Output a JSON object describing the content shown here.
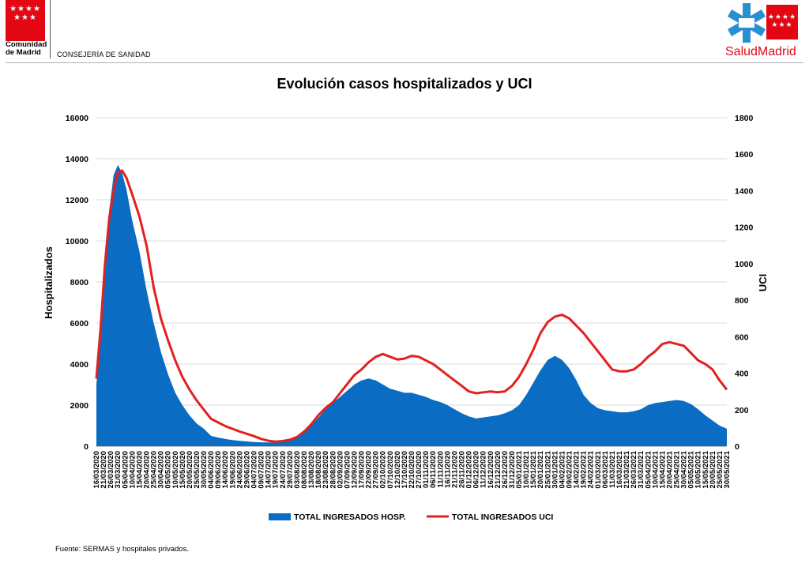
{
  "header": {
    "org_line1": "Comunidad",
    "org_line2": "de Madrid",
    "department": "CONSEJERÍA DE SANIDAD",
    "brand_part1": "Salud",
    "brand_part2": "Madrid"
  },
  "colors": {
    "brand_red": "#e30613",
    "brand_blue": "#2a8fd1",
    "area_blue": "#0a6cc2",
    "line_red": "#e41f1f"
  },
  "chart_data": {
    "type": "area",
    "title": "Evolución casos hospitalizados y UCI",
    "ylabel": "Hospitalizados",
    "y2label": "UCI",
    "ylim": [
      0,
      16000
    ],
    "y2lim": [
      0,
      1800
    ],
    "yticks": [
      0,
      2000,
      4000,
      6000,
      8000,
      10000,
      12000,
      14000,
      16000
    ],
    "y2ticks": [
      0,
      200,
      400,
      600,
      800,
      1000,
      1200,
      1400,
      1600,
      1800
    ],
    "grid": true,
    "legend_position": "bottom",
    "x_start": "2020-03-16",
    "x_end": "2021-05-30",
    "x_tick_step_days": 5,
    "series": [
      {
        "name": "TOTAL INGRESADOS HOSP.",
        "kind": "area",
        "axis": "left",
        "points": [
          [
            "2020-03-16",
            3000
          ],
          [
            "2020-03-19",
            5500
          ],
          [
            "2020-03-22",
            8600
          ],
          [
            "2020-03-25",
            11500
          ],
          [
            "2020-03-28",
            13200
          ],
          [
            "2020-03-31",
            13700
          ],
          [
            "2020-04-03",
            13300
          ],
          [
            "2020-04-06",
            12500
          ],
          [
            "2020-04-10",
            11000
          ],
          [
            "2020-04-15",
            9500
          ],
          [
            "2020-04-20",
            7600
          ],
          [
            "2020-04-25",
            6000
          ],
          [
            "2020-04-30",
            4600
          ],
          [
            "2020-05-05",
            3500
          ],
          [
            "2020-05-10",
            2600
          ],
          [
            "2020-05-15",
            2000
          ],
          [
            "2020-05-20",
            1500
          ],
          [
            "2020-05-25",
            1100
          ],
          [
            "2020-05-30",
            850
          ],
          [
            "2020-06-04",
            500
          ],
          [
            "2020-06-09",
            420
          ],
          [
            "2020-06-14",
            350
          ],
          [
            "2020-06-19",
            300
          ],
          [
            "2020-06-24",
            260
          ],
          [
            "2020-06-29",
            230
          ],
          [
            "2020-07-04",
            200
          ],
          [
            "2020-07-09",
            190
          ],
          [
            "2020-07-14",
            180
          ],
          [
            "2020-07-19",
            190
          ],
          [
            "2020-07-24",
            230
          ],
          [
            "2020-07-29",
            300
          ],
          [
            "2020-08-03",
            450
          ],
          [
            "2020-08-08",
            700
          ],
          [
            "2020-08-13",
            1000
          ],
          [
            "2020-08-18",
            1400
          ],
          [
            "2020-08-23",
            1800
          ],
          [
            "2020-08-28",
            2100
          ],
          [
            "2020-09-02",
            2400
          ],
          [
            "2020-09-07",
            2700
          ],
          [
            "2020-09-12",
            3000
          ],
          [
            "2020-09-17",
            3200
          ],
          [
            "2020-09-22",
            3300
          ],
          [
            "2020-09-27",
            3200
          ],
          [
            "2020-10-02",
            3000
          ],
          [
            "2020-10-07",
            2800
          ],
          [
            "2020-10-12",
            2700
          ],
          [
            "2020-10-17",
            2600
          ],
          [
            "2020-10-22",
            2600
          ],
          [
            "2020-10-27",
            2500
          ],
          [
            "2020-11-01",
            2400
          ],
          [
            "2020-11-06",
            2250
          ],
          [
            "2020-11-11",
            2150
          ],
          [
            "2020-11-16",
            2000
          ],
          [
            "2020-11-21",
            1800
          ],
          [
            "2020-11-26",
            1600
          ],
          [
            "2020-12-01",
            1450
          ],
          [
            "2020-12-06",
            1350
          ],
          [
            "2020-12-11",
            1400
          ],
          [
            "2020-12-16",
            1450
          ],
          [
            "2020-12-21",
            1500
          ],
          [
            "2020-12-26",
            1600
          ],
          [
            "2020-12-31",
            1750
          ],
          [
            "2021-01-05",
            2000
          ],
          [
            "2021-01-10",
            2500
          ],
          [
            "2021-01-15",
            3100
          ],
          [
            "2021-01-20",
            3700
          ],
          [
            "2021-01-25",
            4200
          ],
          [
            "2021-01-30",
            4400
          ],
          [
            "2021-02-04",
            4200
          ],
          [
            "2021-02-09",
            3800
          ],
          [
            "2021-02-14",
            3200
          ],
          [
            "2021-02-19",
            2500
          ],
          [
            "2021-02-24",
            2100
          ],
          [
            "2021-03-01",
            1850
          ],
          [
            "2021-03-06",
            1750
          ],
          [
            "2021-03-11",
            1700
          ],
          [
            "2021-03-16",
            1650
          ],
          [
            "2021-03-21",
            1650
          ],
          [
            "2021-03-26",
            1700
          ],
          [
            "2021-03-31",
            1800
          ],
          [
            "2021-04-05",
            2000
          ],
          [
            "2021-04-10",
            2100
          ],
          [
            "2021-04-15",
            2150
          ],
          [
            "2021-04-20",
            2200
          ],
          [
            "2021-04-25",
            2250
          ],
          [
            "2021-04-30",
            2200
          ],
          [
            "2021-05-05",
            2050
          ],
          [
            "2021-05-10",
            1800
          ],
          [
            "2021-05-15",
            1500
          ],
          [
            "2021-05-20",
            1250
          ],
          [
            "2021-05-25",
            1000
          ],
          [
            "2021-05-30",
            850
          ]
        ]
      },
      {
        "name": "TOTAL INGRESADOS UCI",
        "kind": "line",
        "axis": "right",
        "points": [
          [
            "2020-03-16",
            370
          ],
          [
            "2020-03-19",
            650
          ],
          [
            "2020-03-22",
            1000
          ],
          [
            "2020-03-25",
            1250
          ],
          [
            "2020-03-28",
            1400
          ],
          [
            "2020-03-31",
            1500
          ],
          [
            "2020-04-03",
            1510
          ],
          [
            "2020-04-06",
            1470
          ],
          [
            "2020-04-10",
            1380
          ],
          [
            "2020-04-15",
            1260
          ],
          [
            "2020-04-20",
            1100
          ],
          [
            "2020-04-25",
            870
          ],
          [
            "2020-04-30",
            700
          ],
          [
            "2020-05-05",
            580
          ],
          [
            "2020-05-10",
            470
          ],
          [
            "2020-05-15",
            380
          ],
          [
            "2020-05-20",
            310
          ],
          [
            "2020-05-25",
            250
          ],
          [
            "2020-05-30",
            200
          ],
          [
            "2020-06-04",
            150
          ],
          [
            "2020-06-09",
            130
          ],
          [
            "2020-06-14",
            110
          ],
          [
            "2020-06-19",
            95
          ],
          [
            "2020-06-24",
            80
          ],
          [
            "2020-06-29",
            68
          ],
          [
            "2020-07-04",
            55
          ],
          [
            "2020-07-09",
            40
          ],
          [
            "2020-07-14",
            30
          ],
          [
            "2020-07-19",
            25
          ],
          [
            "2020-07-24",
            28
          ],
          [
            "2020-07-29",
            35
          ],
          [
            "2020-08-03",
            50
          ],
          [
            "2020-08-08",
            80
          ],
          [
            "2020-08-13",
            120
          ],
          [
            "2020-08-18",
            170
          ],
          [
            "2020-08-23",
            210
          ],
          [
            "2020-08-28",
            240
          ],
          [
            "2020-09-02",
            290
          ],
          [
            "2020-09-07",
            340
          ],
          [
            "2020-09-12",
            390
          ],
          [
            "2020-09-17",
            420
          ],
          [
            "2020-09-22",
            460
          ],
          [
            "2020-09-27",
            490
          ],
          [
            "2020-10-02",
            505
          ],
          [
            "2020-10-07",
            490
          ],
          [
            "2020-10-12",
            475
          ],
          [
            "2020-10-17",
            480
          ],
          [
            "2020-10-22",
            495
          ],
          [
            "2020-10-27",
            490
          ],
          [
            "2020-11-01",
            470
          ],
          [
            "2020-11-06",
            450
          ],
          [
            "2020-11-11",
            420
          ],
          [
            "2020-11-16",
            390
          ],
          [
            "2020-11-21",
            360
          ],
          [
            "2020-11-26",
            330
          ],
          [
            "2020-12-01",
            300
          ],
          [
            "2020-12-06",
            290
          ],
          [
            "2020-12-11",
            295
          ],
          [
            "2020-12-16",
            300
          ],
          [
            "2020-12-21",
            295
          ],
          [
            "2020-12-26",
            300
          ],
          [
            "2020-12-31",
            330
          ],
          [
            "2021-01-05",
            380
          ],
          [
            "2021-01-10",
            450
          ],
          [
            "2021-01-15",
            530
          ],
          [
            "2021-01-20",
            620
          ],
          [
            "2021-01-25",
            680
          ],
          [
            "2021-01-30",
            710
          ],
          [
            "2021-02-04",
            720
          ],
          [
            "2021-02-09",
            700
          ],
          [
            "2021-02-14",
            660
          ],
          [
            "2021-02-19",
            620
          ],
          [
            "2021-02-24",
            570
          ],
          [
            "2021-03-01",
            520
          ],
          [
            "2021-03-06",
            470
          ],
          [
            "2021-03-11",
            420
          ],
          [
            "2021-03-16",
            410
          ],
          [
            "2021-03-21",
            410
          ],
          [
            "2021-03-26",
            420
          ],
          [
            "2021-03-31",
            450
          ],
          [
            "2021-04-05",
            490
          ],
          [
            "2021-04-10",
            520
          ],
          [
            "2021-04-15",
            560
          ],
          [
            "2021-04-20",
            570
          ],
          [
            "2021-04-25",
            560
          ],
          [
            "2021-04-30",
            550
          ],
          [
            "2021-05-05",
            510
          ],
          [
            "2021-05-10",
            470
          ],
          [
            "2021-05-15",
            450
          ],
          [
            "2021-05-20",
            420
          ],
          [
            "2021-05-25",
            360
          ],
          [
            "2021-05-30",
            310
          ]
        ]
      }
    ]
  },
  "footer": {
    "source": "Fuente: SERMAS y hospitales privados."
  }
}
